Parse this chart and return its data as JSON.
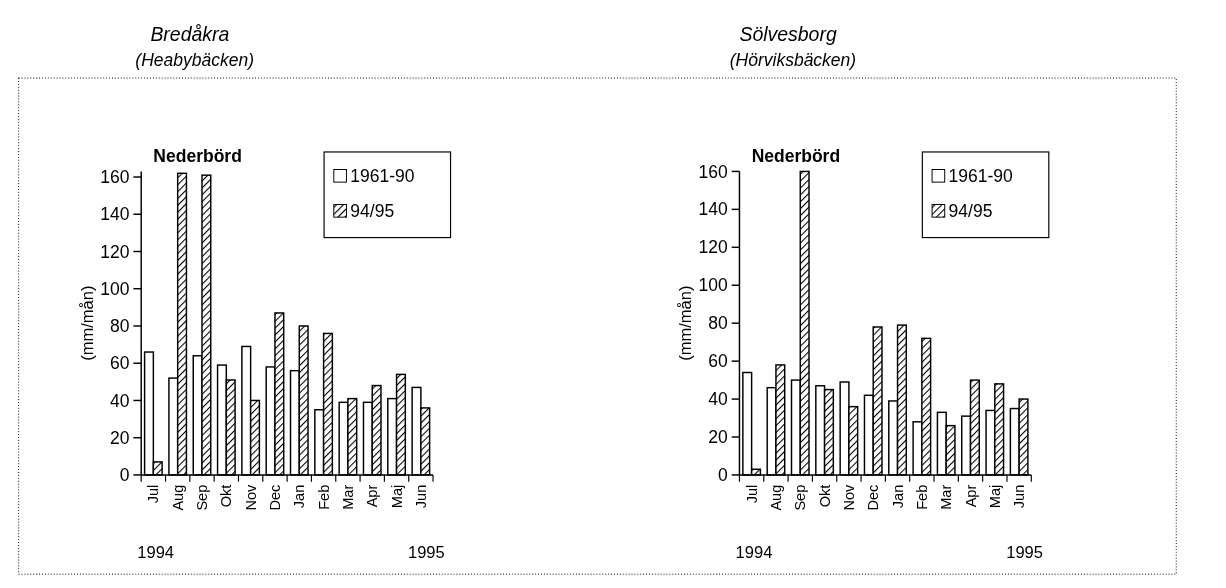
{
  "chart_data": [
    {
      "type": "bar",
      "title": "Bredåkra",
      "subtitle": "(Heabybäcken)",
      "annotations": [
        "Nederbörd",
        "1994",
        "1995"
      ],
      "ylabel": "(mm/mån)",
      "categories": [
        "Jul",
        "Aug",
        "Sep",
        "Okt",
        "Nov",
        "Dec",
        "Jan",
        "Feb",
        "Mar",
        "Apr",
        "Maj",
        "Jun"
      ],
      "ylim": [
        0,
        163
      ],
      "yticks": [
        0,
        20,
        40,
        60,
        80,
        100,
        120,
        140,
        160
      ],
      "legend": "top right",
      "series": [
        {
          "name": "1961-90",
          "color": "#ffffff",
          "values": [
            66,
            52,
            64,
            59,
            69,
            58,
            56,
            35,
            39,
            39,
            41,
            47
          ]
        },
        {
          "name": "94/95",
          "color": "#000000",
          "values": [
            7,
            162,
            161,
            51,
            40,
            87,
            80,
            76,
            41,
            48,
            54,
            36
          ]
        }
      ]
    },
    {
      "type": "bar",
      "title": "Sölvesborg",
      "subtitle": "(Hörviksbäcken)",
      "annotations": [
        "Nederbörd",
        "1994",
        "1995"
      ],
      "ylabel": "(mm/mån)",
      "categories": [
        "Jul",
        "Aug",
        "Sep",
        "Okt",
        "Nov",
        "Dec",
        "Jan",
        "Feb",
        "Mar",
        "Apr",
        "Maj",
        "Jun"
      ],
      "ylim": [
        0,
        160
      ],
      "yticks": [
        0,
        20,
        40,
        60,
        80,
        100,
        120,
        140,
        160
      ],
      "legend": "top right",
      "series": [
        {
          "name": "1961-90",
          "color": "#ffffff",
          "values": [
            54,
            46,
            50,
            47,
            49,
            42,
            39,
            28,
            33,
            31,
            34,
            35
          ]
        },
        {
          "name": "94/95",
          "color": "#000000",
          "values": [
            3,
            58,
            160,
            45,
            36,
            78,
            79,
            72,
            26,
            50,
            48,
            40
          ]
        }
      ]
    }
  ]
}
